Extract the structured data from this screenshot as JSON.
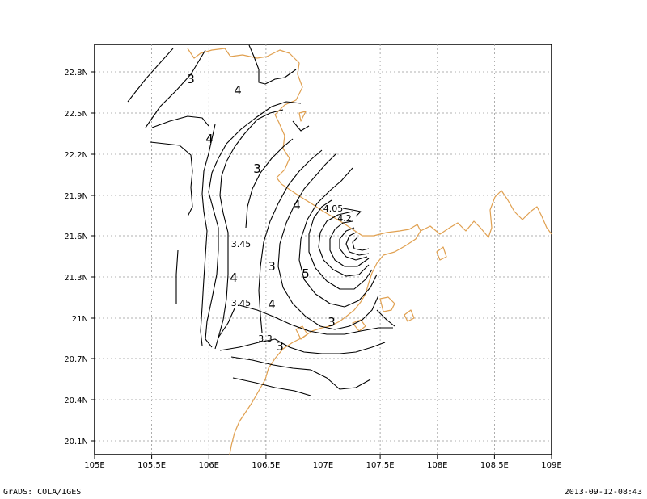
{
  "map": {
    "lon_min": 105,
    "lon_max": 109,
    "lat_min": 20,
    "lat_max": 22.95,
    "x_ticks": [
      "105E",
      "105.5E",
      "106E",
      "106.5E",
      "107E",
      "107.5E",
      "108E",
      "108.5E",
      "109E"
    ],
    "y_ticks": [
      "20.1N",
      "20.4N",
      "20.7N",
      "21N",
      "21.3N",
      "21.6N",
      "21.9N",
      "22.2N",
      "22.5N",
      "22.8N"
    ],
    "grid": "on",
    "contour_color": "#000000",
    "coastline_color": "#e0a050",
    "contour_labels": [
      "3",
      "4",
      "4",
      "3",
      "4",
      "4",
      "3",
      "3.45",
      "4",
      "5",
      "3",
      "4.05",
      "4.2",
      "3.45",
      "4",
      "3",
      "3.3",
      "3"
    ]
  },
  "footer": {
    "left": "GrADS: COLA/IGES",
    "right": "2013-09-12-08:43"
  }
}
